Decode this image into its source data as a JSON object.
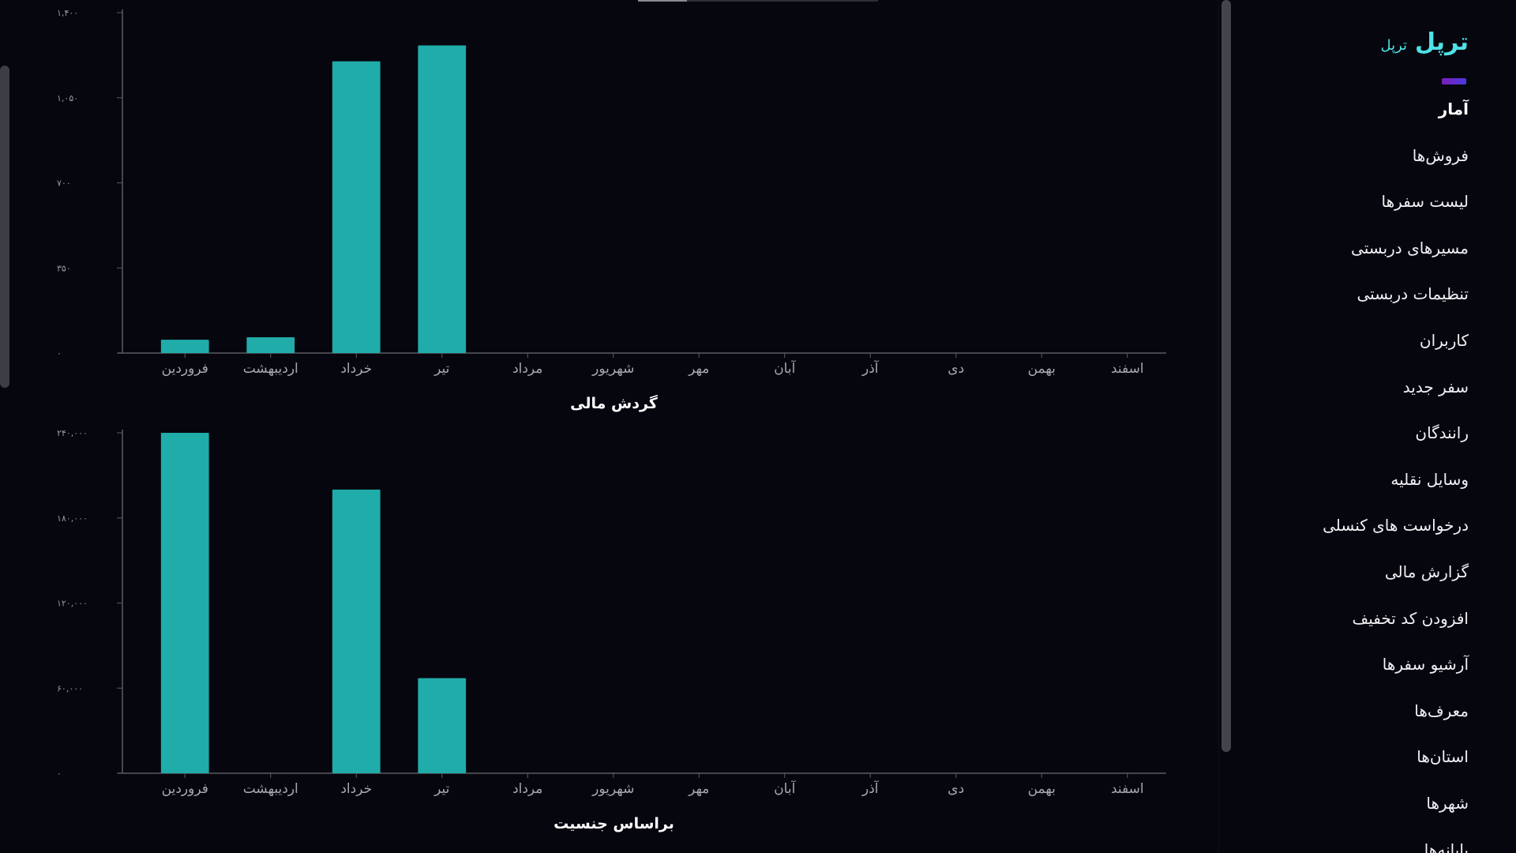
{
  "brand": {
    "logo_main": "ترپل",
    "logo_sub": "ترپل",
    "accent_color": "#4fe2e6",
    "indicator_gradient": [
      "#7b1fb8",
      "#4a3ae0"
    ]
  },
  "sidebar": {
    "active_index": 0,
    "items": [
      {
        "label": "آمار",
        "name": "sidebar-item-stats"
      },
      {
        "label": "فروش‌ها",
        "name": "sidebar-item-sales"
      },
      {
        "label": "لیست سفرها",
        "name": "sidebar-item-trips-list"
      },
      {
        "label": "مسیرهای دربستی",
        "name": "sidebar-item-charter-routes"
      },
      {
        "label": "تنظیمات دربستی",
        "name": "sidebar-item-charter-settings"
      },
      {
        "label": "کاربران",
        "name": "sidebar-item-users"
      },
      {
        "label": "سفر جدید",
        "name": "sidebar-item-new-trip"
      },
      {
        "label": "رانندگان",
        "name": "sidebar-item-drivers"
      },
      {
        "label": "وسایل نقلیه",
        "name": "sidebar-item-vehicles"
      },
      {
        "label": "درخواست های کنسلی",
        "name": "sidebar-item-cancel-requests"
      },
      {
        "label": "گزارش مالی",
        "name": "sidebar-item-financial-report"
      },
      {
        "label": "افزودن کد تخفیف",
        "name": "sidebar-item-add-discount"
      },
      {
        "label": "آرشیو سفرها",
        "name": "sidebar-item-trips-archive"
      },
      {
        "label": "معرف‌ها",
        "name": "sidebar-item-referrers"
      },
      {
        "label": "استان‌ها",
        "name": "sidebar-item-provinces"
      },
      {
        "label": "شهرها",
        "name": "sidebar-item-cities"
      },
      {
        "label": "پایانه‌ها",
        "name": "sidebar-item-terminals"
      }
    ]
  },
  "chart_data": [
    {
      "type": "bar",
      "title": "",
      "caption_below": "گردش مالی",
      "categories": [
        "فروردین",
        "اردیبهشت",
        "خرداد",
        "تیر",
        "مرداد",
        "شهریور",
        "مهر",
        "آبان",
        "آذر",
        "دی",
        "بهمن",
        "اسفند"
      ],
      "values": [
        55,
        65,
        1200,
        1265,
        0,
        0,
        0,
        0,
        0,
        0,
        0,
        0
      ],
      "ylim": [
        0,
        1400
      ],
      "yticks": [
        0,
        350,
        700,
        1050,
        1400
      ],
      "ytick_labels": [
        "۰",
        "۳۵۰",
        "۷۰۰",
        "۱,۰۵۰",
        "۱,۴۰۰"
      ],
      "bar_color": "#20aca8",
      "grid": false
    },
    {
      "type": "bar",
      "title": "",
      "caption_below": "براساس جنسیت",
      "categories": [
        "فروردین",
        "اردیبهشت",
        "خرداد",
        "تیر",
        "مرداد",
        "شهریور",
        "مهر",
        "آبان",
        "آذر",
        "دی",
        "بهمن",
        "اسفند"
      ],
      "values": [
        240000,
        0,
        200000,
        67000,
        0,
        0,
        0,
        0,
        0,
        0,
        0,
        0
      ],
      "ylim": [
        0,
        240000
      ],
      "yticks": [
        0,
        60000,
        120000,
        180000,
        240000
      ],
      "ytick_labels": [
        "۰",
        "۶۰,۰۰۰",
        "۱۲۰,۰۰۰",
        "۱۸۰,۰۰۰",
        "۲۴۰,۰۰۰"
      ],
      "bar_color": "#20aca8",
      "grid": false
    }
  ]
}
